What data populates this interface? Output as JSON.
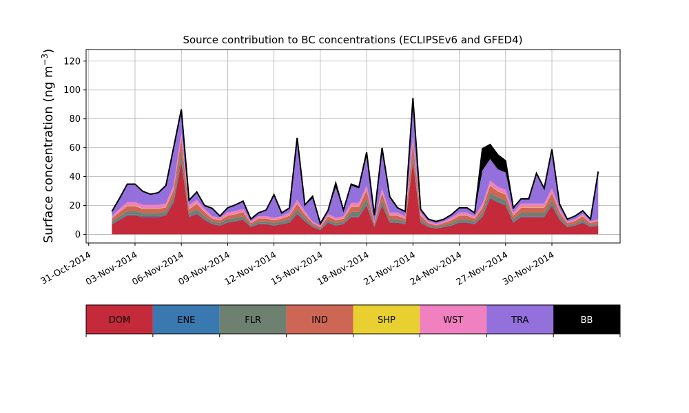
{
  "chart_data": {
    "type": "area",
    "stacked": true,
    "title": "Source contribution to BC concentrations (ECLIPSEv6 and GFED4)",
    "ylabel_main": "Surface concentration (ng m",
    "ylabel_sup": "−3",
    "ylabel_close": ")",
    "xlabel": "",
    "x_unit": "days",
    "xlim": [
      "2014-10-30T20:00",
      "2014-12-04T10:00"
    ],
    "ylim": [
      -6,
      128
    ],
    "grid": true,
    "x_ticks": [
      "31-Oct-2014",
      "03-Nov-2014",
      "06-Nov-2014",
      "09-Nov-2014",
      "12-Nov-2014",
      "15-Nov-2014",
      "18-Nov-2014",
      "21-Nov-2014",
      "24-Nov-2014",
      "27-Nov-2014",
      "30-Nov-2014"
    ],
    "y_ticks": [
      0,
      20,
      40,
      60,
      80,
      100,
      120
    ],
    "x": [
      "2014-11-01T12:00",
      "2014-11-02T00:00",
      "2014-11-02T12:00",
      "2014-11-03T00:00",
      "2014-11-03T12:00",
      "2014-11-04T00:00",
      "2014-11-04T12:00",
      "2014-11-05T00:00",
      "2014-11-05T12:00",
      "2014-11-06T00:00",
      "2014-11-06T12:00",
      "2014-11-07T00:00",
      "2014-11-07T12:00",
      "2014-11-08T00:00",
      "2014-11-08T12:00",
      "2014-11-09T00:00",
      "2014-11-09T12:00",
      "2014-11-10T00:00",
      "2014-11-10T12:00",
      "2014-11-11T00:00",
      "2014-11-11T12:00",
      "2014-11-12T00:00",
      "2014-11-12T12:00",
      "2014-11-13T00:00",
      "2014-11-13T12:00",
      "2014-11-14T00:00",
      "2014-11-14T12:00",
      "2014-11-15T00:00",
      "2014-11-15T12:00",
      "2014-11-16T00:00",
      "2014-11-16T12:00",
      "2014-11-17T00:00",
      "2014-11-17T12:00",
      "2014-11-18T00:00",
      "2014-11-18T12:00",
      "2014-11-19T00:00",
      "2014-11-19T12:00",
      "2014-11-20T00:00",
      "2014-11-20T12:00",
      "2014-11-21T00:00",
      "2014-11-21T12:00",
      "2014-11-22T00:00",
      "2014-11-22T12:00",
      "2014-11-23T00:00",
      "2014-11-23T12:00",
      "2014-11-24T00:00",
      "2014-11-24T12:00",
      "2014-11-25T00:00",
      "2014-11-25T12:00",
      "2014-11-26T00:00",
      "2014-11-26T12:00",
      "2014-11-27T00:00",
      "2014-11-27T12:00",
      "2014-11-28T00:00",
      "2014-11-28T12:00",
      "2014-11-29T00:00",
      "2014-11-29T12:00",
      "2014-11-30T00:00",
      "2014-11-30T12:00",
      "2014-12-01T00:00",
      "2014-12-01T12:00",
      "2014-12-02T00:00",
      "2014-12-02T12:00",
      "2014-12-03T00:00"
    ],
    "series": [
      {
        "name": "DOM",
        "color": "#c42a3a",
        "values": [
          7,
          10,
          13,
          13,
          12,
          12,
          12,
          13,
          22,
          50,
          12,
          14,
          10,
          7,
          6,
          8,
          9,
          10,
          5,
          7,
          7,
          6,
          7,
          8,
          14,
          9,
          5,
          3,
          8,
          6,
          7,
          12,
          12,
          20,
          5,
          20,
          8,
          8,
          7,
          50,
          8,
          5,
          4,
          5,
          6,
          8,
          8,
          7,
          12,
          25,
          22,
          20,
          8,
          12,
          12,
          12,
          12,
          20,
          10,
          5,
          6,
          8,
          5,
          6
        ]
      },
      {
        "name": "ENE",
        "color": "#3a78b0",
        "values": [
          0.4,
          0.5,
          0.6,
          0.6,
          0.6,
          0.6,
          0.6,
          0.6,
          0.8,
          1.2,
          0.5,
          0.6,
          0.5,
          0.4,
          0.3,
          0.4,
          0.4,
          0.5,
          0.3,
          0.4,
          0.4,
          0.3,
          0.4,
          0.4,
          0.6,
          0.4,
          0.3,
          0.2,
          0.5,
          0.3,
          0.3,
          0.5,
          0.5,
          0.6,
          0.3,
          0.6,
          0.4,
          0.4,
          0.3,
          1.0,
          0.4,
          0.3,
          0.2,
          0.3,
          0.3,
          0.4,
          0.4,
          0.4,
          0.5,
          0.8,
          0.7,
          0.6,
          0.4,
          0.5,
          0.5,
          0.5,
          0.5,
          0.6,
          0.4,
          0.3,
          0.3,
          0.4,
          0.3,
          0.3
        ]
      },
      {
        "name": "FLR",
        "color": "#6e8070",
        "values": [
          1.5,
          2,
          2.5,
          2.5,
          2,
          2,
          2,
          2,
          3,
          5,
          2,
          2.5,
          2,
          1.5,
          1.5,
          2,
          2,
          2,
          1,
          1.5,
          1.5,
          1.5,
          1.5,
          2,
          2.5,
          2,
          1,
          0.8,
          1.5,
          1.5,
          1.5,
          3,
          3,
          4,
          1,
          3,
          2,
          2,
          1.5,
          3,
          2,
          1,
          1,
          1,
          1.5,
          2,
          2,
          1.5,
          2.5,
          3,
          3,
          3,
          2,
          2.5,
          2.5,
          2.5,
          2.5,
          3,
          2,
          1,
          1,
          1.5,
          1,
          1
        ]
      },
      {
        "name": "IND",
        "color": "#cd6655",
        "values": [
          2,
          3,
          3.5,
          3.5,
          3,
          3,
          3,
          3,
          5,
          10,
          3,
          4,
          3,
          2,
          2,
          2.5,
          2.5,
          3,
          1.5,
          2,
          2,
          2,
          2,
          2.5,
          4,
          2.5,
          1.5,
          1,
          2.5,
          2,
          2,
          3.5,
          3.5,
          6,
          1.5,
          5,
          2.5,
          2.5,
          2,
          10,
          2.5,
          1.5,
          1,
          1.5,
          2,
          2.5,
          2.5,
          2,
          3.5,
          5,
          4,
          4,
          2.5,
          3.5,
          3.5,
          3.5,
          3.5,
          5,
          3,
          1.5,
          2,
          2.5,
          1.5,
          2
        ]
      },
      {
        "name": "SHP",
        "color": "#e8d030",
        "values": [
          0.2,
          0.2,
          0.3,
          0.3,
          0.3,
          0.3,
          0.3,
          0.3,
          0.3,
          0.4,
          0.3,
          0.3,
          0.2,
          0.2,
          0.2,
          0.2,
          0.2,
          0.2,
          0.1,
          0.2,
          0.2,
          0.2,
          0.2,
          0.2,
          0.3,
          0.2,
          0.1,
          0.1,
          0.2,
          0.2,
          0.2,
          0.3,
          0.3,
          0.3,
          0.1,
          0.3,
          0.2,
          0.2,
          0.2,
          0.4,
          0.2,
          0.1,
          0.1,
          0.1,
          0.2,
          0.2,
          0.2,
          0.2,
          0.3,
          0.4,
          0.3,
          0.3,
          0.2,
          0.3,
          0.3,
          0.3,
          0.3,
          0.3,
          0.2,
          0.1,
          0.2,
          0.2,
          0.1,
          0.2
        ]
      },
      {
        "name": "WST",
        "color": "#f080c0",
        "values": [
          1.5,
          2,
          2.5,
          2.5,
          2.5,
          2.5,
          2.5,
          2.5,
          3,
          4,
          2.5,
          2.5,
          2,
          1.5,
          1.5,
          2,
          2,
          2,
          1,
          1.5,
          1.5,
          1.5,
          1.5,
          2,
          2.5,
          2,
          1,
          0.8,
          1.5,
          1.5,
          1.5,
          2.5,
          2.5,
          3,
          1,
          3,
          2,
          2,
          1.5,
          4,
          2,
          1,
          1,
          1,
          1.5,
          2,
          2,
          1.5,
          2.5,
          3,
          3,
          3,
          2,
          2.5,
          2.5,
          2.5,
          2.5,
          3,
          2,
          1,
          1,
          1.5,
          1,
          1
        ]
      },
      {
        "name": "TRA",
        "color": "#9370db",
        "values": [
          3,
          7,
          12,
          12,
          9,
          7,
          8,
          12,
          25,
          14,
          3,
          5,
          2,
          5,
          1,
          3,
          4,
          5,
          1.5,
          2,
          4,
          15,
          2,
          3,
          40,
          4,
          16,
          1.5,
          2,
          21,
          4,
          12,
          10,
          20,
          4,
          25,
          10,
          3,
          3,
          24,
          2,
          1.5,
          1.5,
          1.5,
          2,
          3,
          3,
          2,
          23,
          15,
          12,
          12,
          3,
          3,
          3,
          20,
          10,
          25,
          3,
          1.5,
          2,
          2,
          1.5,
          30
        ]
      },
      {
        "name": "BB",
        "color": "#000000",
        "values": [
          0.2,
          0.3,
          0.4,
          0.4,
          0.4,
          0.4,
          0.4,
          0.4,
          1,
          2,
          0.3,
          0.5,
          0.3,
          0.4,
          0.2,
          0.3,
          0.3,
          0.3,
          0.2,
          0.3,
          0.3,
          1,
          0.2,
          0.2,
          3,
          0.3,
          1.5,
          0.1,
          0.3,
          3,
          0.3,
          1,
          1,
          3,
          0.3,
          3,
          1,
          0.3,
          0.3,
          2,
          0.2,
          0.1,
          0.1,
          0.1,
          0.2,
          0.3,
          0.3,
          0.2,
          15,
          10,
          10,
          8,
          0.3,
          0.3,
          0.3,
          1,
          0.5,
          2,
          0.3,
          0.1,
          0.2,
          0.2,
          0.1,
          3
        ]
      }
    ],
    "total_outline_color": "#000000",
    "legend_placement": "bottom-colorbar"
  }
}
